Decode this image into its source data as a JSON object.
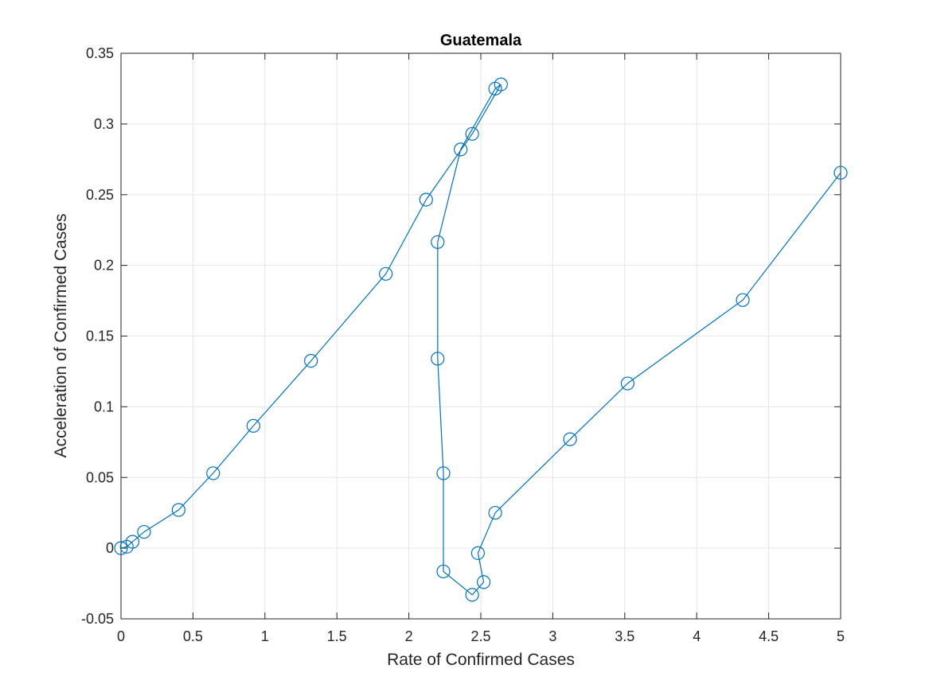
{
  "chart_data": {
    "type": "line",
    "title": "Guatemala",
    "xlabel": "Rate of Confirmed Cases",
    "ylabel": "Acceleration of Confirmed Cases",
    "xlim": [
      0,
      5
    ],
    "ylim": [
      -0.05,
      0.35
    ],
    "xticks": [
      0,
      0.5,
      1,
      1.5,
      2,
      2.5,
      3,
      3.5,
      4,
      4.5,
      5
    ],
    "xtick_labels": [
      "0",
      "0.5",
      "1",
      "1.5",
      "2",
      "2.5",
      "3",
      "3.5",
      "4",
      "4.5",
      "5"
    ],
    "yticks": [
      -0.05,
      0,
      0.05,
      0.1,
      0.15,
      0.2,
      0.25,
      0.3,
      0.35
    ],
    "ytick_labels": [
      "-0.05",
      "0",
      "0.05",
      "0.1",
      "0.15",
      "0.2",
      "0.25",
      "0.3",
      "0.35"
    ],
    "grid": true,
    "marker": "circle",
    "color": "#0072BD",
    "series": [
      {
        "x": [
          0,
          0.04,
          0.08,
          0.16,
          0.4,
          0.64,
          0.92,
          1.32,
          1.84,
          2.12,
          2.44,
          2.64,
          2.6,
          2.36,
          2.2,
          2.2,
          2.24,
          2.24,
          2.44,
          2.52,
          2.48,
          2.6,
          3.12,
          3.52,
          4.32,
          5.0
        ],
        "y": [
          0,
          0.001,
          0.0045,
          0.0115,
          0.027,
          0.053,
          0.0865,
          0.1325,
          0.194,
          0.2465,
          0.293,
          0.328,
          0.325,
          0.282,
          0.2165,
          0.134,
          0.053,
          -0.0165,
          -0.033,
          -0.024,
          -0.0035,
          0.025,
          0.077,
          0.1165,
          0.1755,
          0.2655
        ]
      }
    ]
  }
}
